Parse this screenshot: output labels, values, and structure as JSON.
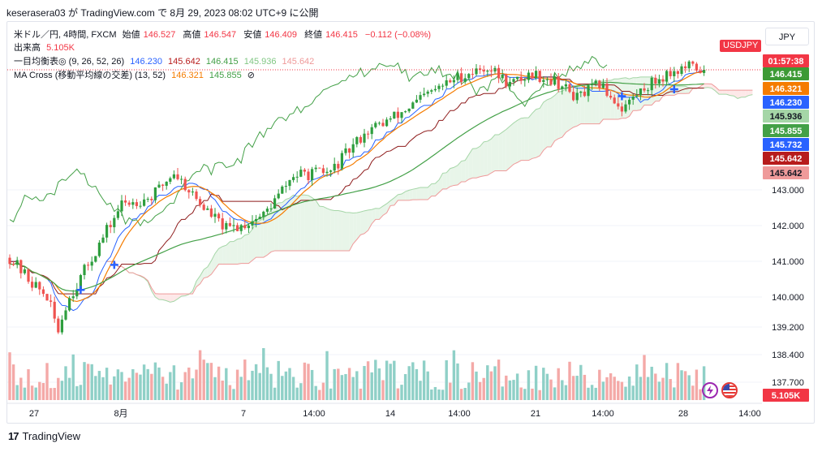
{
  "header": {
    "published": "keserasera03 が TradingView.com で 8月 29, 2023 08:02 UTC+9 に公開"
  },
  "legend": {
    "symbol": "米ドル／円, 4時間, FXCM",
    "open_label": "始値",
    "open": "146.527",
    "high_label": "高値",
    "high": "146.547",
    "low_label": "安値",
    "low": "146.409",
    "close_label": "終値",
    "close": "146.415",
    "change": "−0.112 (−0.08%)",
    "volume_label": "出来高",
    "volume": "5.105K",
    "ichimoku_label": "一目均衡表◎ (9, 26, 52, 26)",
    "ichimoku_values": [
      "146.230",
      "145.642",
      "146.415",
      "145.936",
      "145.642"
    ],
    "ma_label": "MA Cross (移動平均線の交差) (13, 52)",
    "ma_values": [
      "146.321",
      "145.855"
    ],
    "ma_hide_icon": "⊘"
  },
  "toolbar": {
    "currency": "JPY",
    "symbol_tag": "USDJPY"
  },
  "price_tags": [
    {
      "text": "01:57:38",
      "color": "#f23645"
    },
    {
      "text": "146.415",
      "color": "#3d9a35"
    },
    {
      "text": "146.321",
      "color": "#f57c00"
    },
    {
      "text": "146.230",
      "color": "#2962ff"
    },
    {
      "text": "145.936",
      "color": "#a5d6a7"
    },
    {
      "text": "145.855",
      "color": "#43a047"
    },
    {
      "text": "145.732",
      "color": "#2962ff"
    },
    {
      "text": "145.642",
      "color": "#b71c1c"
    },
    {
      "text": "145.642",
      "color": "#ef9a9a"
    },
    {
      "text": "5.105K",
      "color": "#f23645"
    }
  ],
  "logo": {
    "text": "TradingView"
  },
  "colors": {
    "up": "#26a69a",
    "up_green": "#2e9e3e",
    "down": "#ef5350",
    "tenkan": "#2962ff",
    "kijun": "#8e1b1b",
    "chikou": "#43a047",
    "span_a": "#a5d6a7",
    "span_b": "#ef9a9a",
    "cloud_bull": "#e8f5e9",
    "cloud_bear": "#fde8e8",
    "ma_fast": "#f57c00",
    "ma_slow": "#43a047"
  },
  "chart_data": {
    "type": "candlestick",
    "timeframe": "4時間",
    "x_ticks": [
      "27",
      "8月",
      "7",
      "14:00",
      "14",
      "14:00",
      "21",
      "14:00",
      "28",
      "14:00"
    ],
    "y_ticks": [
      137.7,
      138.4,
      139.2,
      140.0,
      141.0,
      142.0,
      143.0
    ],
    "current_price": 146.415,
    "ohlc_anchor_path": [
      [
        0,
        141.1
      ],
      [
        6,
        140.4
      ],
      [
        10,
        140.0
      ],
      [
        13,
        139.1
      ],
      [
        15,
        139.8
      ],
      [
        22,
        141.1
      ],
      [
        30,
        142.6
      ],
      [
        38,
        142.8
      ],
      [
        44,
        143.5
      ],
      [
        52,
        142.5
      ],
      [
        58,
        141.9
      ],
      [
        62,
        142.0
      ],
      [
        68,
        142.3
      ],
      [
        76,
        143.4
      ],
      [
        86,
        143.5
      ],
      [
        95,
        144.6
      ],
      [
        104,
        145.1
      ],
      [
        112,
        145.7
      ],
      [
        120,
        146.2
      ],
      [
        128,
        146.5
      ],
      [
        134,
        146.0
      ],
      [
        140,
        146.3
      ],
      [
        146,
        146.1
      ],
      [
        152,
        145.6
      ],
      [
        158,
        146.0
      ],
      [
        164,
        145.3
      ],
      [
        170,
        145.9
      ],
      [
        176,
        146.3
      ],
      [
        182,
        146.5
      ],
      [
        186,
        146.4
      ]
    ],
    "volume_scale_max": 1.0
  }
}
